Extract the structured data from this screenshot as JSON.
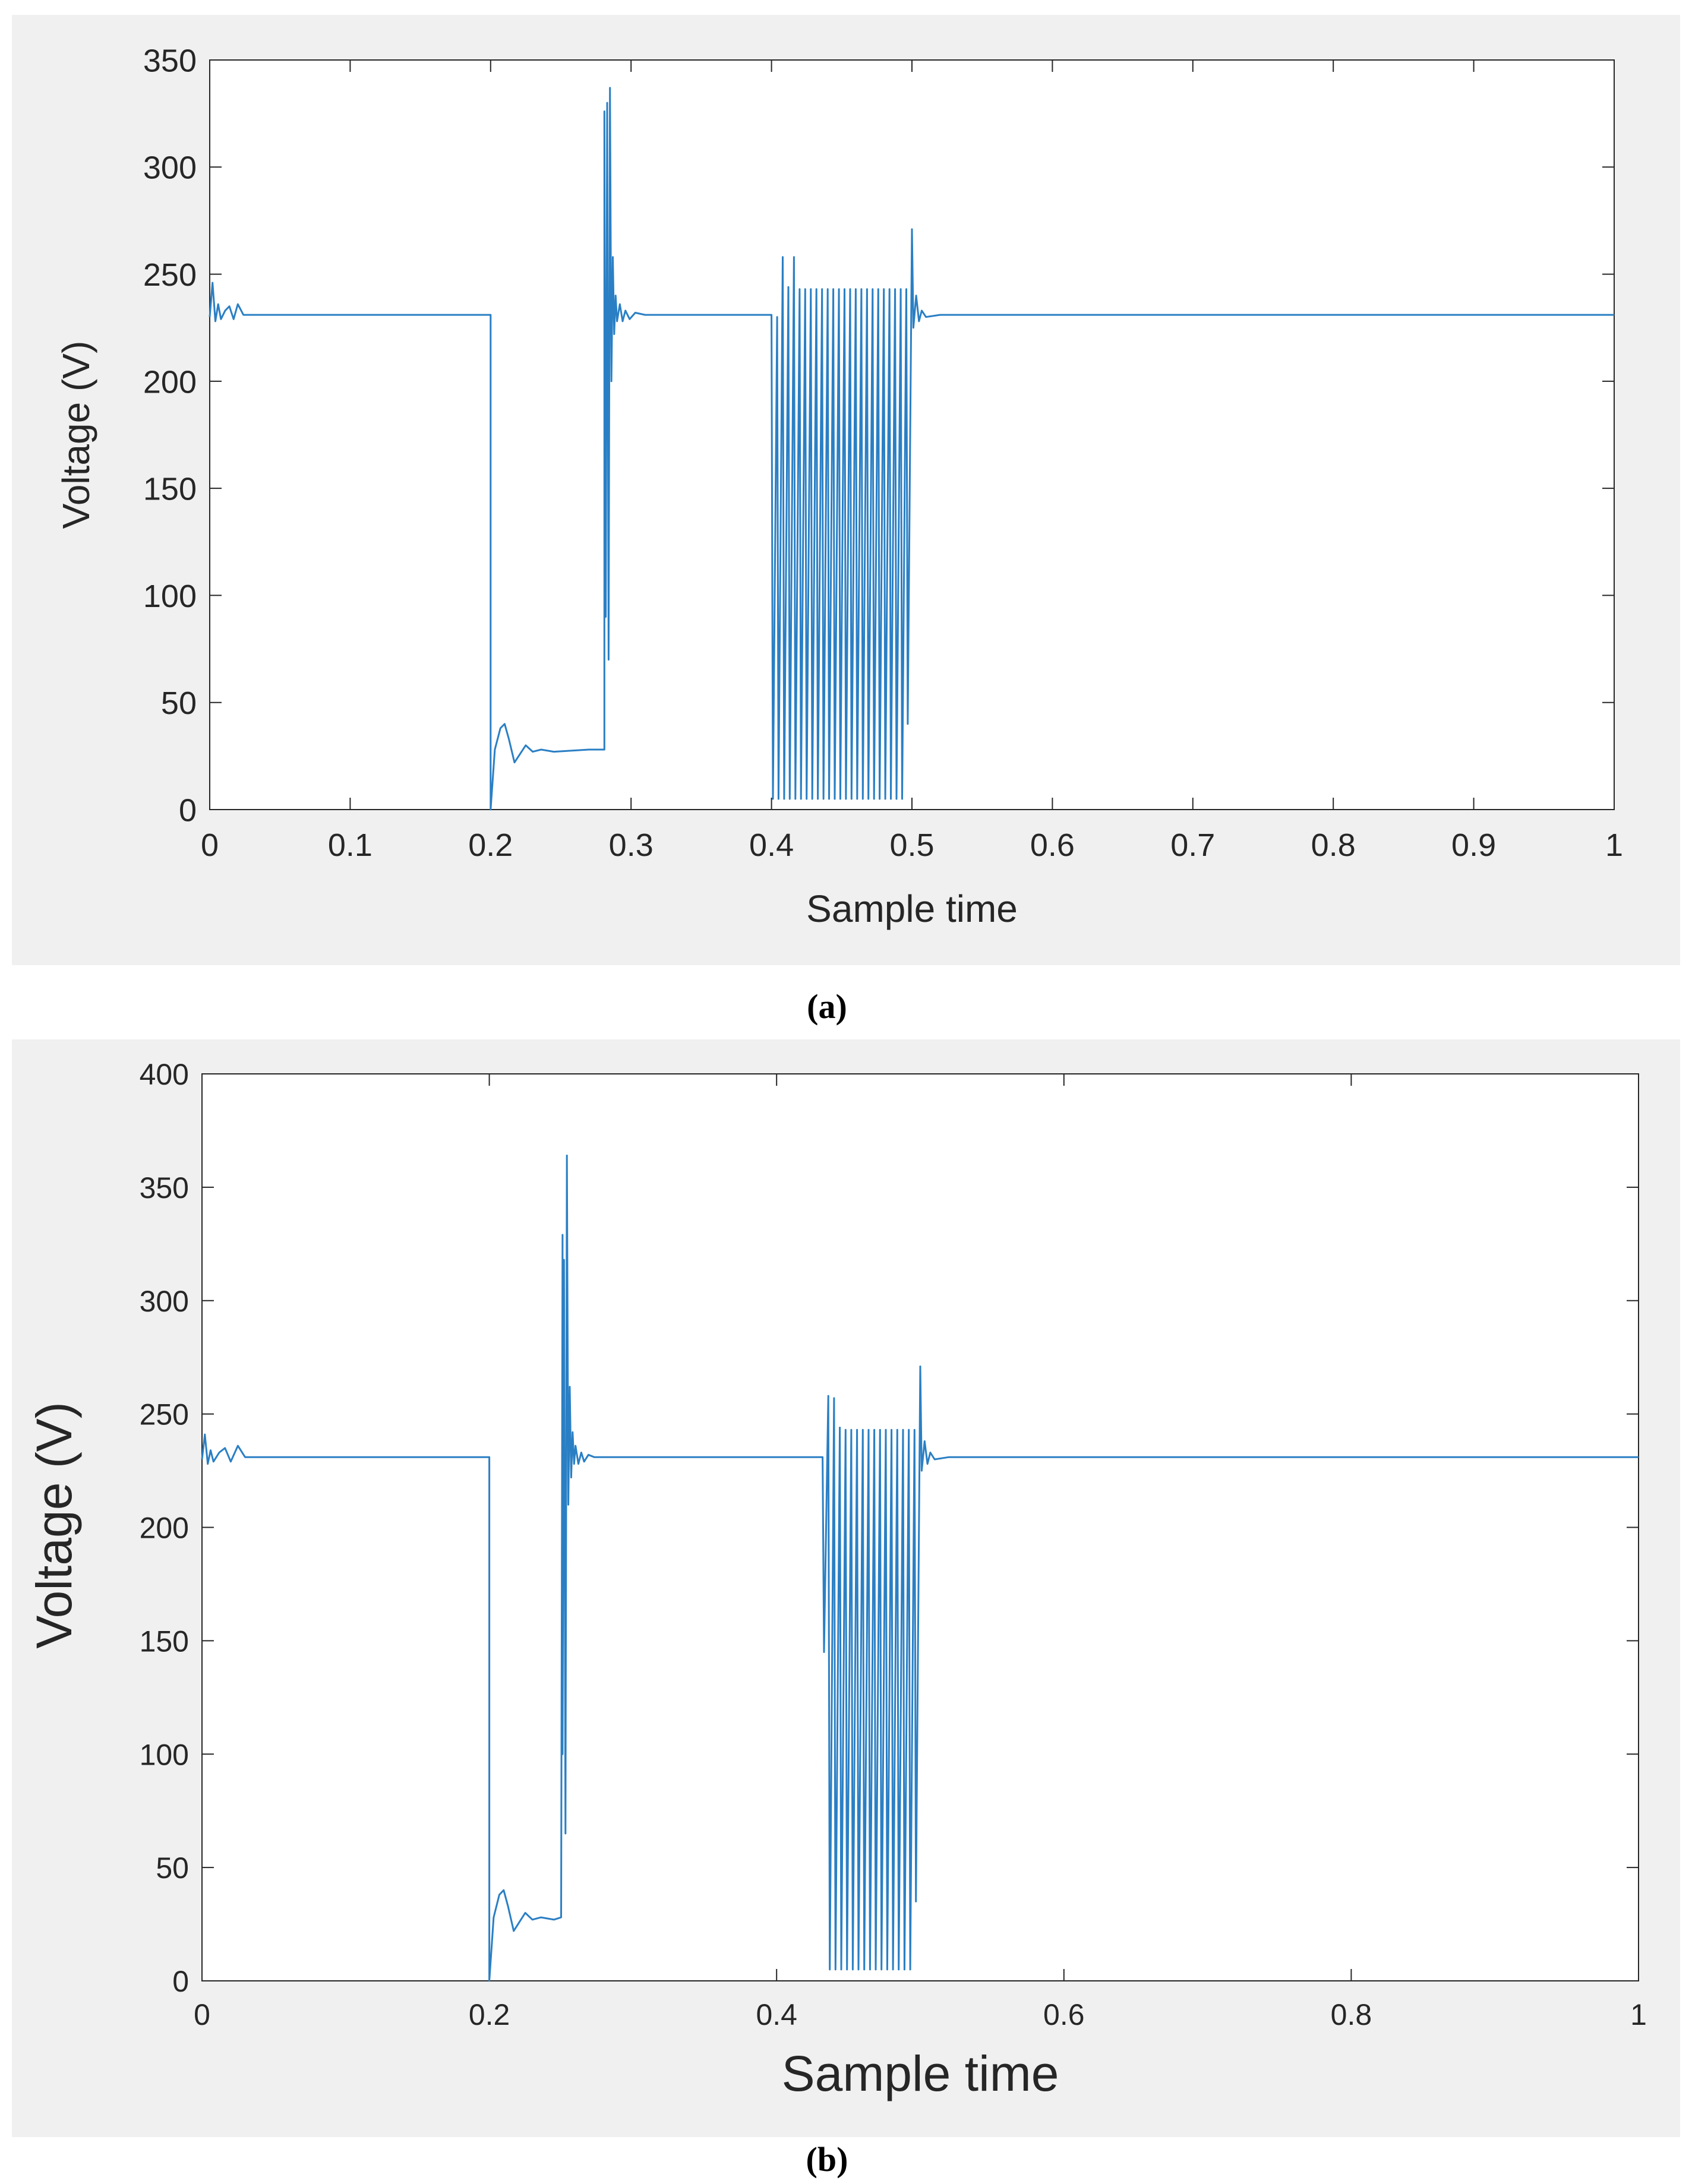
{
  "colors": {
    "line": "#2a7fc4",
    "panel": "#f0f0f0",
    "axis": "#262626"
  },
  "chart_data": [
    {
      "type": "line",
      "caption": "(a)",
      "xlabel": "Sample time",
      "ylabel": "Voltage (V)",
      "xlim": [
        0,
        1
      ],
      "ylim": [
        0,
        350
      ],
      "xticks": [
        "0",
        "0.1",
        "0.2",
        "0.3",
        "0.4",
        "0.5",
        "0.6",
        "0.7",
        "0.8",
        "0.9",
        "1"
      ],
      "yticks": [
        "0",
        "50",
        "100",
        "150",
        "200",
        "250",
        "300",
        "350"
      ],
      "grid": false,
      "series": [
        {
          "name": "Voltage",
          "x": [
            0,
            0.002,
            0.004,
            0.006,
            0.008,
            0.011,
            0.014,
            0.017,
            0.02,
            0.024,
            0.03,
            0.198,
            0.2,
            0.2,
            0.203,
            0.207,
            0.21,
            0.213,
            0.217,
            0.221,
            0.225,
            0.23,
            0.236,
            0.245,
            0.27,
            0.281,
            0.281,
            0.282,
            0.283,
            0.284,
            0.285,
            0.286,
            0.287,
            0.288,
            0.289,
            0.29,
            0.292,
            0.294,
            0.296,
            0.299,
            0.303,
            0.31,
            0.4,
            0.401,
            0.404,
            0.405,
            0.408,
            0.409,
            0.412,
            0.413,
            0.416,
            0.417,
            0.42,
            0.421,
            0.424,
            0.425,
            0.428,
            0.429,
            0.432,
            0.433,
            0.436,
            0.437,
            0.44,
            0.441,
            0.444,
            0.445,
            0.448,
            0.449,
            0.452,
            0.453,
            0.456,
            0.457,
            0.46,
            0.461,
            0.464,
            0.465,
            0.468,
            0.469,
            0.472,
            0.473,
            0.476,
            0.477,
            0.48,
            0.481,
            0.484,
            0.485,
            0.488,
            0.489,
            0.492,
            0.493,
            0.496,
            0.497,
            0.5,
            0.501,
            0.503,
            0.505,
            0.507,
            0.51,
            0.52,
            1
          ],
          "values": [
            230,
            246,
            228,
            236,
            229,
            233,
            235,
            229,
            236,
            231,
            231,
            231,
            231,
            0,
            28,
            38,
            40,
            33,
            22,
            26,
            30,
            27,
            28,
            27,
            28,
            28,
            326,
            90,
            330,
            70,
            337,
            200,
            258,
            222,
            240,
            228,
            236,
            228,
            233,
            229,
            232,
            231,
            231,
            5,
            230,
            5,
            258,
            5,
            244,
            5,
            258,
            5,
            243,
            5,
            243,
            5,
            243,
            5,
            243,
            5,
            243,
            5,
            243,
            5,
            243,
            5,
            243,
            5,
            243,
            5,
            243,
            5,
            243,
            5,
            243,
            5,
            243,
            5,
            243,
            5,
            243,
            5,
            243,
            5,
            243,
            5,
            243,
            5,
            243,
            5,
            243,
            40,
            271,
            225,
            240,
            228,
            233,
            230,
            231,
            231
          ]
        }
      ]
    },
    {
      "type": "line",
      "caption": "(b)",
      "xlabel": "Sample time",
      "ylabel": "Voltage (V)",
      "xlim": [
        0,
        1
      ],
      "ylim": [
        0,
        400
      ],
      "xticks": [
        "0",
        "0.2",
        "0.4",
        "0.6",
        "0.8",
        "1"
      ],
      "yticks": [
        "0",
        "50",
        "100",
        "150",
        "200",
        "250",
        "300",
        "350",
        "400"
      ],
      "grid": false,
      "series": [
        {
          "name": "Voltage",
          "x": [
            0,
            0.002,
            0.004,
            0.006,
            0.008,
            0.012,
            0.016,
            0.02,
            0.025,
            0.03,
            0.198,
            0.2,
            0.2,
            0.203,
            0.207,
            0.21,
            0.213,
            0.217,
            0.221,
            0.225,
            0.23,
            0.236,
            0.245,
            0.25,
            0.251,
            0.251,
            0.252,
            0.253,
            0.254,
            0.255,
            0.256,
            0.257,
            0.258,
            0.259,
            0.26,
            0.262,
            0.264,
            0.266,
            0.269,
            0.273,
            0.28,
            0.432,
            0.433,
            0.436,
            0.437,
            0.44,
            0.441,
            0.444,
            0.445,
            0.448,
            0.449,
            0.452,
            0.453,
            0.456,
            0.457,
            0.46,
            0.461,
            0.464,
            0.465,
            0.468,
            0.469,
            0.472,
            0.473,
            0.476,
            0.477,
            0.48,
            0.481,
            0.484,
            0.485,
            0.488,
            0.489,
            0.492,
            0.493,
            0.496,
            0.497,
            0.5,
            0.501,
            0.503,
            0.505,
            0.507,
            0.51,
            0.52,
            1
          ],
          "values": [
            230,
            241,
            228,
            234,
            229,
            233,
            235,
            229,
            236,
            231,
            231,
            231,
            0,
            28,
            38,
            40,
            33,
            22,
            26,
            30,
            27,
            28,
            27,
            28,
            329,
            100,
            318,
            65,
            364,
            210,
            262,
            222,
            242,
            228,
            236,
            228,
            233,
            229,
            232,
            231,
            231,
            231,
            145,
            258,
            5,
            257,
            5,
            244,
            5,
            243,
            5,
            243,
            5,
            243,
            5,
            243,
            5,
            243,
            5,
            243,
            5,
            243,
            5,
            243,
            5,
            243,
            5,
            243,
            5,
            243,
            5,
            243,
            5,
            243,
            35,
            271,
            225,
            238,
            228,
            233,
            230,
            231,
            231
          ]
        }
      ]
    }
  ]
}
